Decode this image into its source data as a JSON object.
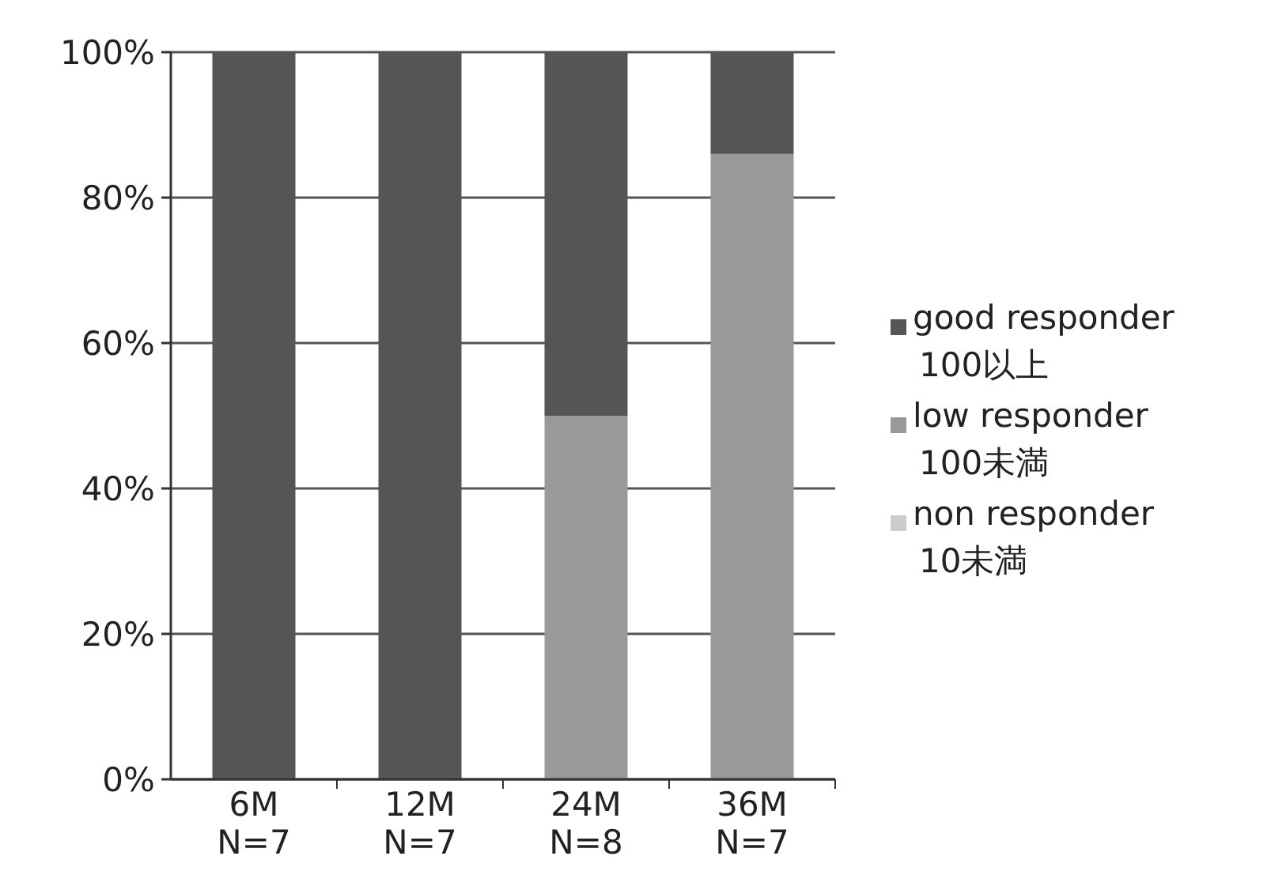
{
  "chart_data": {
    "type": "bar",
    "stacked": true,
    "categories": [
      "6M\nN=7",
      "12M\nN=7",
      "24M\nN=8",
      "36M\nN=7"
    ],
    "series": [
      {
        "name": "non responder\n10未満",
        "color": "#cccccc",
        "values": [
          0,
          0,
          0,
          0
        ]
      },
      {
        "name": "low responder\n100未満",
        "color": "#999999",
        "values": [
          0,
          0,
          50,
          86
        ]
      },
      {
        "name": "good responder\n100以上",
        "color": "#555555",
        "values": [
          100,
          100,
          50,
          14
        ]
      }
    ],
    "ylim": [
      0,
      100
    ],
    "yticks": [
      {
        "value": 0,
        "label": "0%"
      },
      {
        "value": 20,
        "label": "20%"
      },
      {
        "value": 40,
        "label": "40%"
      },
      {
        "value": 60,
        "label": "60%"
      },
      {
        "value": 80,
        "label": "80%"
      },
      {
        "value": 100,
        "label": "100%"
      }
    ],
    "grid": "y",
    "legend": "right"
  }
}
